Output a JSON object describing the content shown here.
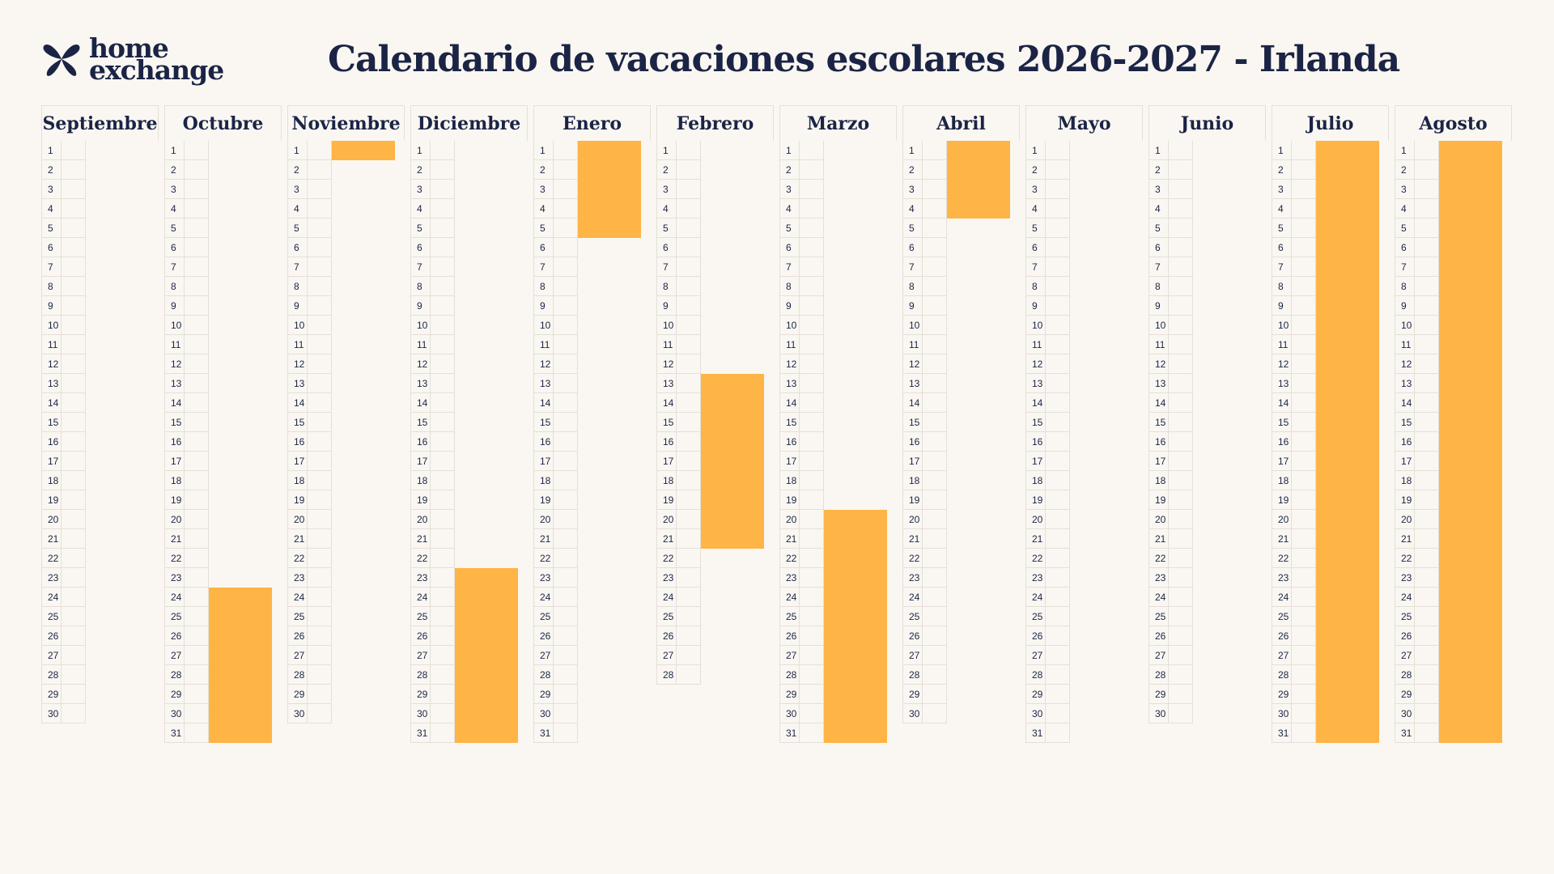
{
  "brand": {
    "logo_line1": "home",
    "logo_line2": "exchange",
    "accent_color": "#ffb446",
    "text_color": "#1b2445"
  },
  "title": "Calendario de vacaciones escolares 2026-2027 - Irlanda",
  "months": [
    {
      "name": "Septiembre",
      "days": 30,
      "holidays": []
    },
    {
      "name": "Octubre",
      "days": 31,
      "holidays": [
        [
          24,
          31
        ]
      ]
    },
    {
      "name": "Noviembre",
      "days": 30,
      "holidays": [
        [
          1,
          1
        ]
      ]
    },
    {
      "name": "Diciembre",
      "days": 31,
      "holidays": [
        [
          23,
          31
        ]
      ]
    },
    {
      "name": "Enero",
      "days": 31,
      "holidays": [
        [
          1,
          5
        ]
      ]
    },
    {
      "name": "Febrero",
      "days": 28,
      "holidays": [
        [
          13,
          21
        ]
      ]
    },
    {
      "name": "Marzo",
      "days": 31,
      "holidays": [
        [
          20,
          31
        ]
      ]
    },
    {
      "name": "Abril",
      "days": 30,
      "holidays": [
        [
          1,
          4
        ]
      ]
    },
    {
      "name": "Mayo",
      "days": 31,
      "holidays": []
    },
    {
      "name": "Junio",
      "days": 30,
      "holidays": []
    },
    {
      "name": "Julio",
      "days": 31,
      "holidays": [
        [
          1,
          31
        ]
      ]
    },
    {
      "name": "Agosto",
      "days": 31,
      "holidays": [
        [
          1,
          31
        ]
      ]
    }
  ]
}
